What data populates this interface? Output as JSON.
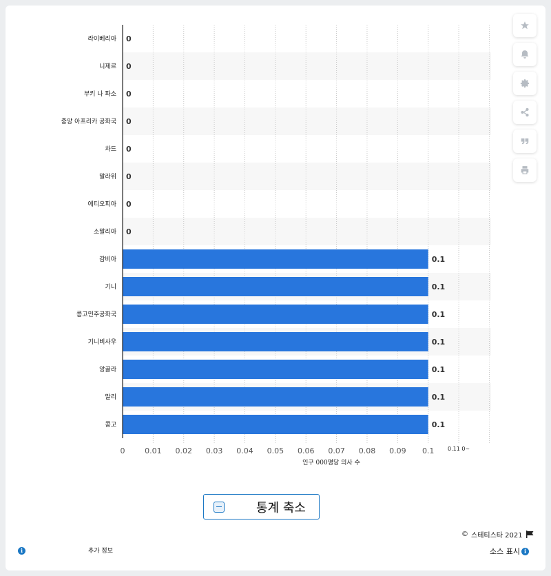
{
  "chart_data": {
    "type": "bar",
    "orientation": "horizontal",
    "categories": [
      "라이베리아",
      "니제르",
      "부키 나 파소",
      "중앙 아프리카 공화국",
      "차드",
      "말라위",
      "에티오피아",
      "소말리아",
      "감비아",
      "기니",
      "콩고민주공화국",
      "기니비사우",
      "앙골라",
      "말리",
      "콩고"
    ],
    "values": [
      0,
      0,
      0,
      0,
      0,
      0,
      0,
      0,
      0.1,
      0.1,
      0.1,
      0.1,
      0.1,
      0.1,
      0.1
    ],
    "value_labels": [
      "0",
      "0",
      "0",
      "0",
      "0",
      "0",
      "0",
      "0",
      "0.1",
      "0.1",
      "0.1",
      "0.1",
      "0.1",
      "0.1",
      "0.1"
    ],
    "xlabel": "인구 000명당 의사 수",
    "x_ticks": [
      "0",
      "0.01",
      "0.02",
      "0.03",
      "0.04",
      "0.05",
      "0.06",
      "0.07",
      "0.08",
      "0.09",
      "0.1",
      "0.11 0~"
    ],
    "xlim": [
      0,
      0.12
    ],
    "grid": true,
    "bar_color": "#2876dd"
  },
  "toolbar": {
    "icons": [
      "star-icon",
      "bell-icon",
      "gear-icon",
      "share-icon",
      "quote-icon",
      "print-icon"
    ]
  },
  "collapse_label": "통계 축소",
  "footer": {
    "copyright": "스테티스타 2021",
    "more_info": "추가 정보",
    "source": "소스 표시"
  }
}
